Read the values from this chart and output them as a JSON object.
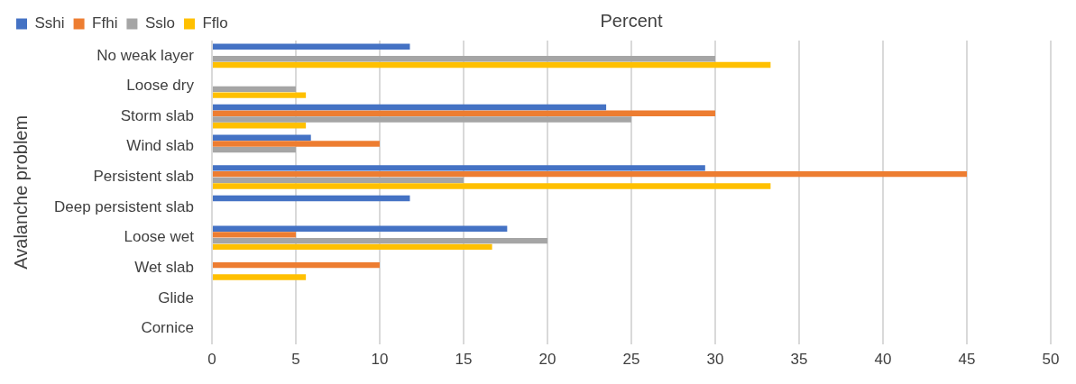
{
  "chart_data": {
    "type": "bar",
    "orientation": "horizontal",
    "xlabel": "Percent",
    "ylabel": "Avalanche problem",
    "categories": [
      "No weak layer",
      "Loose dry",
      "Storm slab",
      "Wind slab",
      "Persistent slab",
      "Deep persistent slab",
      "Loose wet",
      "Wet slab",
      "Glide",
      "Cornice"
    ],
    "series": [
      {
        "name": "Sshi",
        "color": "#4472c4",
        "values": [
          11.8,
          0,
          23.5,
          5.9,
          29.4,
          11.8,
          17.6,
          0,
          0,
          0
        ]
      },
      {
        "name": "Ffhi",
        "color": "#ed7d31",
        "values": [
          0,
          0,
          30,
          10,
          45,
          0,
          5,
          10,
          0,
          0
        ]
      },
      {
        "name": "Sslo",
        "color": "#a5a5a5",
        "values": [
          30,
          5,
          25,
          5,
          15,
          0,
          20,
          0,
          0,
          0
        ]
      },
      {
        "name": "Fflo",
        "color": "#ffc000",
        "values": [
          33.3,
          5.6,
          5.6,
          0,
          33.3,
          0,
          16.7,
          5.6,
          0,
          0
        ]
      }
    ],
    "xlim": [
      0,
      50
    ],
    "xticks": [
      0,
      5,
      10,
      15,
      20,
      25,
      30,
      35,
      40,
      45,
      50
    ],
    "grid": "x",
    "legend": "top left"
  }
}
